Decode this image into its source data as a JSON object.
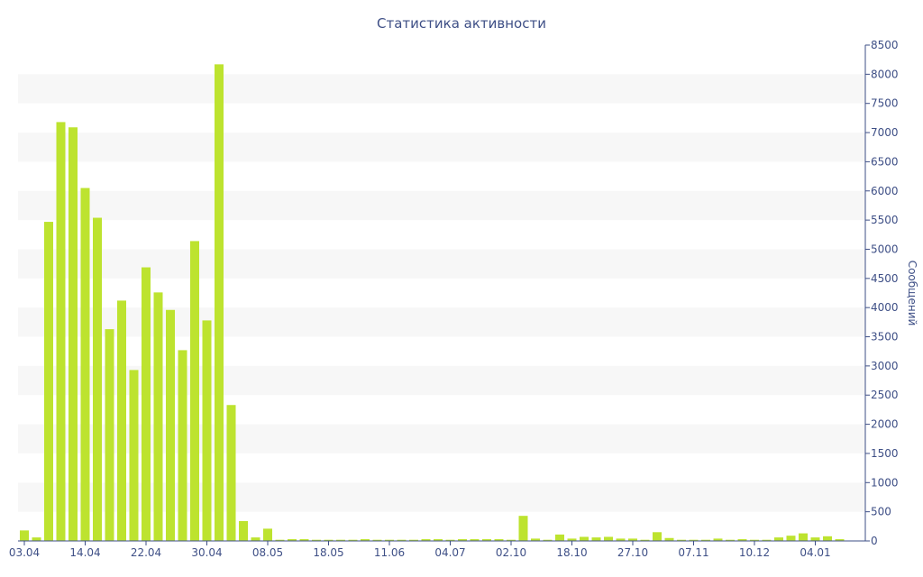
{
  "chart_data": {
    "type": "bar",
    "title": "Статистика активности",
    "ylabel": "Сообщений",
    "xlabel": "",
    "ylim": [
      0,
      8500
    ],
    "y_ticks": [
      0,
      500,
      1000,
      1500,
      2000,
      2500,
      3000,
      3500,
      4000,
      4500,
      5000,
      5500,
      6000,
      6500,
      7000,
      7500,
      8000,
      8500
    ],
    "y_axis_position": "right",
    "grid": "alternating-bands",
    "bar_color": "#bde32f",
    "text_color": "#3e4f86",
    "band_color": "#f7f7f7",
    "x_tick_labels": [
      {
        "label": "03.04",
        "index": 0
      },
      {
        "label": "14.04",
        "index": 5
      },
      {
        "label": "22.04",
        "index": 10
      },
      {
        "label": "30.04",
        "index": 15
      },
      {
        "label": "08.05",
        "index": 20
      },
      {
        "label": "18.05",
        "index": 25
      },
      {
        "label": "11.06",
        "index": 30
      },
      {
        "label": "04.07",
        "index": 35
      },
      {
        "label": "02.10",
        "index": 40
      },
      {
        "label": "18.10",
        "index": 45
      },
      {
        "label": "27.10",
        "index": 50
      },
      {
        "label": "07.11",
        "index": 55
      },
      {
        "label": "10.12",
        "index": 60
      },
      {
        "label": "04.01",
        "index": 65
      }
    ],
    "values": [
      180,
      60,
      5470,
      7180,
      7090,
      6050,
      5540,
      3630,
      4120,
      2930,
      4690,
      4260,
      3960,
      3270,
      5140,
      3780,
      8170,
      2330,
      340,
      60,
      210,
      20,
      30,
      30,
      20,
      20,
      20,
      20,
      30,
      20,
      20,
      20,
      20,
      30,
      30,
      20,
      30,
      30,
      30,
      30,
      20,
      430,
      40,
      20,
      110,
      40,
      70,
      60,
      70,
      40,
      40,
      20,
      150,
      50,
      20,
      20,
      20,
      40,
      20,
      30,
      20,
      20,
      60,
      90,
      130,
      60,
      80,
      30
    ]
  }
}
